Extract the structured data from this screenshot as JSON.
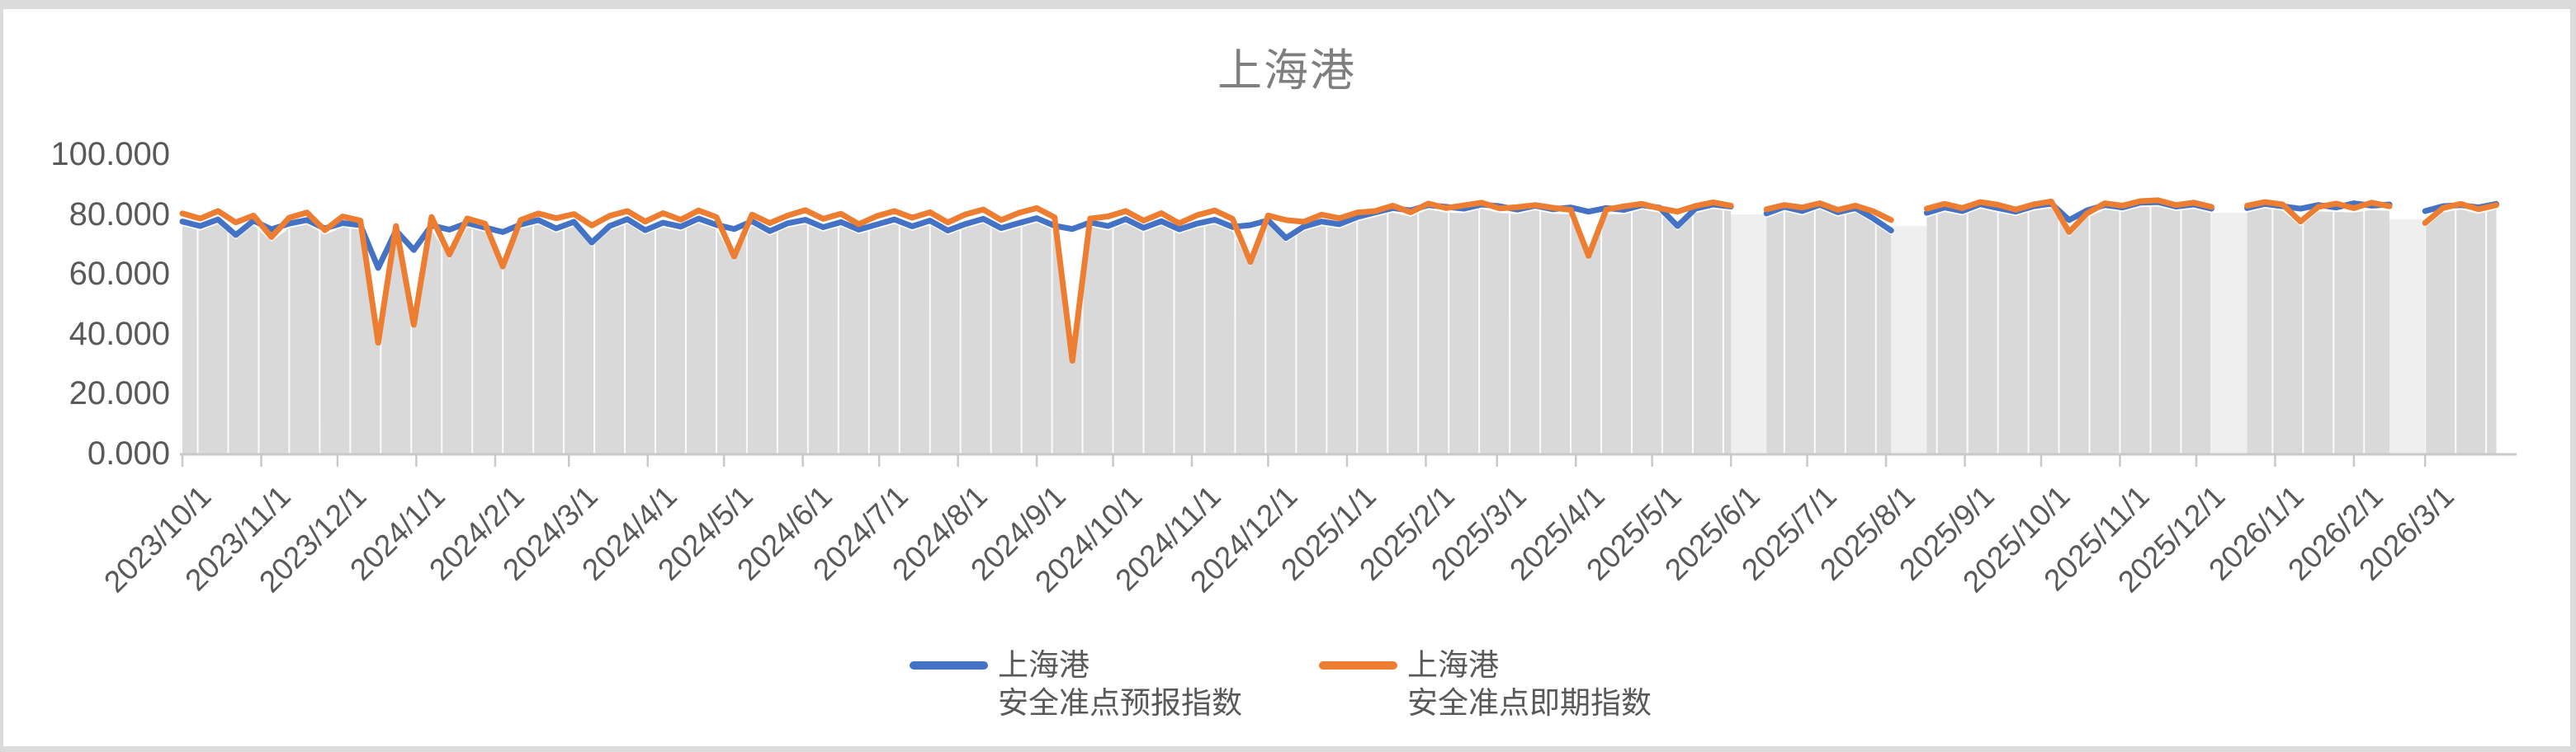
{
  "window": {
    "outer_background": "#DBDBDB",
    "canvas_background": "#FFFFFF"
  },
  "chart": {
    "title": "上海港",
    "title_color": "#7F7F7F",
    "axis_text_color": "#595959",
    "axis_line_color": "#C9C9C9",
    "area_fill_color": "#D9D9D9",
    "gap_band_color": "#EFEFEF",
    "separator_line_color": "#FFFFFF"
  },
  "legend": [
    {
      "line1": "上海港",
      "line2": "安全准点预报指数",
      "color": "#4472C4"
    },
    {
      "line1": "上海港",
      "line2": "安全准点即期指数",
      "color": "#ED7D31"
    }
  ],
  "chart_data": {
    "type": "line",
    "title": "上海港",
    "xlabel": "",
    "ylabel": "",
    "ylim": [
      0,
      100
    ],
    "grid": false,
    "legend_position": "bottom",
    "x_start_date": "2023/10/1",
    "x_step_days": 7,
    "x_domain_days": [
      0,
      918
    ],
    "separator_interval_days": 12,
    "y_ticks": [
      {
        "label": "100.000",
        "value": 100
      },
      {
        "label": "80.000",
        "value": 80
      },
      {
        "label": "60.000",
        "value": 60
      },
      {
        "label": "40.000",
        "value": 40
      },
      {
        "label": "20.000",
        "value": 20
      },
      {
        "label": "0.000",
        "value": 0
      }
    ],
    "x_ticks": [
      {
        "label": "2023/10/1",
        "day": 0
      },
      {
        "label": "2023/11/1",
        "day": 31
      },
      {
        "label": "2023/12/1",
        "day": 61
      },
      {
        "label": "2024/1/1",
        "day": 92
      },
      {
        "label": "2024/2/1",
        "day": 123
      },
      {
        "label": "2024/3/1",
        "day": 152
      },
      {
        "label": "2024/4/1",
        "day": 183
      },
      {
        "label": "2024/5/1",
        "day": 213
      },
      {
        "label": "2024/6/1",
        "day": 244
      },
      {
        "label": "2024/7/1",
        "day": 274
      },
      {
        "label": "2024/8/1",
        "day": 305
      },
      {
        "label": "2024/9/1",
        "day": 336
      },
      {
        "label": "2024/10/1",
        "day": 366
      },
      {
        "label": "2024/11/1",
        "day": 397
      },
      {
        "label": "2024/12/1",
        "day": 427
      },
      {
        "label": "2025/1/1",
        "day": 458
      },
      {
        "label": "2025/2/1",
        "day": 489
      },
      {
        "label": "2025/3/1",
        "day": 517
      },
      {
        "label": "2025/4/1",
        "day": 548
      },
      {
        "label": "2025/5/1",
        "day": 578
      },
      {
        "label": "2025/6/1",
        "day": 609
      },
      {
        "label": "2025/7/1",
        "day": 639
      },
      {
        "label": "2025/8/1",
        "day": 670
      },
      {
        "label": "2025/9/1",
        "day": 701
      },
      {
        "label": "2025/10/1",
        "day": 731
      },
      {
        "label": "2025/11/1",
        "day": 762
      },
      {
        "label": "2025/12/1",
        "day": 792
      },
      {
        "label": "2026/1/1",
        "day": 823
      },
      {
        "label": "2026/2/1",
        "day": 854
      },
      {
        "label": "2026/3/1",
        "day": 882
      }
    ],
    "series": [
      {
        "name": "上海港安全准点预报指数",
        "color": "#4472C4",
        "values": [
          77.5,
          76.0,
          78.2,
          73.0,
          77.8,
          74.9,
          76.8,
          78.0,
          75.2,
          77.0,
          76.3,
          62.0,
          74.5,
          68.0,
          76.2,
          74.8,
          77.0,
          75.5,
          74.0,
          76.5,
          78.0,
          75.2,
          77.4,
          70.5,
          76.0,
          78.3,
          74.6,
          77.1,
          75.8,
          78.5,
          76.4,
          75.0,
          77.6,
          74.3,
          76.9,
          78.1,
          75.6,
          77.3,
          74.8,
          76.5,
          78.2,
          75.9,
          77.8,
          74.5,
          76.7,
          78.4,
          75.3,
          77.0,
          78.6,
          76.1,
          75.0,
          77.2,
          76.0,
          78.3,
          75.4,
          77.6,
          74.9,
          76.8,
          78.1,
          75.7,
          76.3,
          77.9,
          72.0,
          75.8,
          77.5,
          76.6,
          79.0,
          80.5,
          82.0,
          81.2,
          83.0,
          82.4,
          81.8,
          83.2,
          82.6,
          81.5,
          82.8,
          81.6,
          82.2,
          80.8,
          82.0,
          81.4,
          83.0,
          82.1,
          76.0,
          81.8,
          83.2,
          82.5,
          null,
          80.2,
          82.4,
          81.0,
          83.1,
          80.6,
          82.0,
          78.5,
          74.5,
          null,
          80.4,
          82.2,
          81.0,
          83.3,
          82.0,
          80.8,
          82.6,
          83.5,
          78.0,
          81.2,
          83.0,
          82.2,
          83.8,
          84.0,
          82.5,
          83.2,
          81.8,
          null,
          82.0,
          83.4,
          82.6,
          81.8,
          83.0,
          82.2,
          83.6,
          82.8,
          83.2,
          null,
          81.0,
          82.6,
          83.0,
          82.2,
          83.4
        ]
      },
      {
        "name": "上海港安全准点即期指数",
        "color": "#ED7D31",
        "values": [
          80.2,
          78.5,
          81.0,
          77.2,
          79.5,
          72.3,
          78.8,
          80.5,
          74.6,
          79.2,
          77.8,
          37.0,
          76.0,
          43.0,
          79.0,
          66.5,
          78.5,
          76.8,
          62.5,
          78.0,
          80.2,
          78.6,
          80.0,
          76.2,
          79.4,
          81.0,
          77.5,
          80.3,
          78.1,
          81.2,
          79.0,
          65.8,
          79.8,
          77.0,
          79.5,
          81.3,
          78.4,
          80.1,
          76.6,
          79.3,
          81.0,
          78.8,
          80.6,
          77.2,
          79.9,
          81.5,
          78.0,
          80.4,
          82.0,
          78.9,
          31.0,
          78.5,
          79.2,
          81.0,
          77.8,
          80.3,
          76.9,
          79.6,
          81.2,
          78.4,
          64.0,
          79.5,
          78.0,
          77.4,
          79.8,
          78.6,
          80.5,
          81.0,
          82.8,
          80.6,
          83.5,
          82.0,
          82.9,
          83.8,
          81.9,
          82.3,
          83.0,
          82.1,
          81.4,
          66.0,
          81.5,
          82.6,
          83.4,
          81.9,
          80.8,
          82.7,
          83.9,
          82.8,
          null,
          81.6,
          83.0,
          82.2,
          83.6,
          81.4,
          82.8,
          80.9,
          78.0,
          null,
          81.8,
          83.4,
          82.0,
          84.0,
          83.1,
          81.5,
          83.2,
          84.2,
          74.0,
          80.2,
          83.6,
          82.8,
          84.3,
          84.6,
          83.0,
          83.8,
          82.4,
          null,
          82.8,
          84.0,
          83.2,
          77.5,
          82.4,
          83.5,
          82.0,
          83.8,
          82.6,
          null,
          77.0,
          82.0,
          83.4,
          81.6,
          83.0
        ]
      }
    ]
  }
}
